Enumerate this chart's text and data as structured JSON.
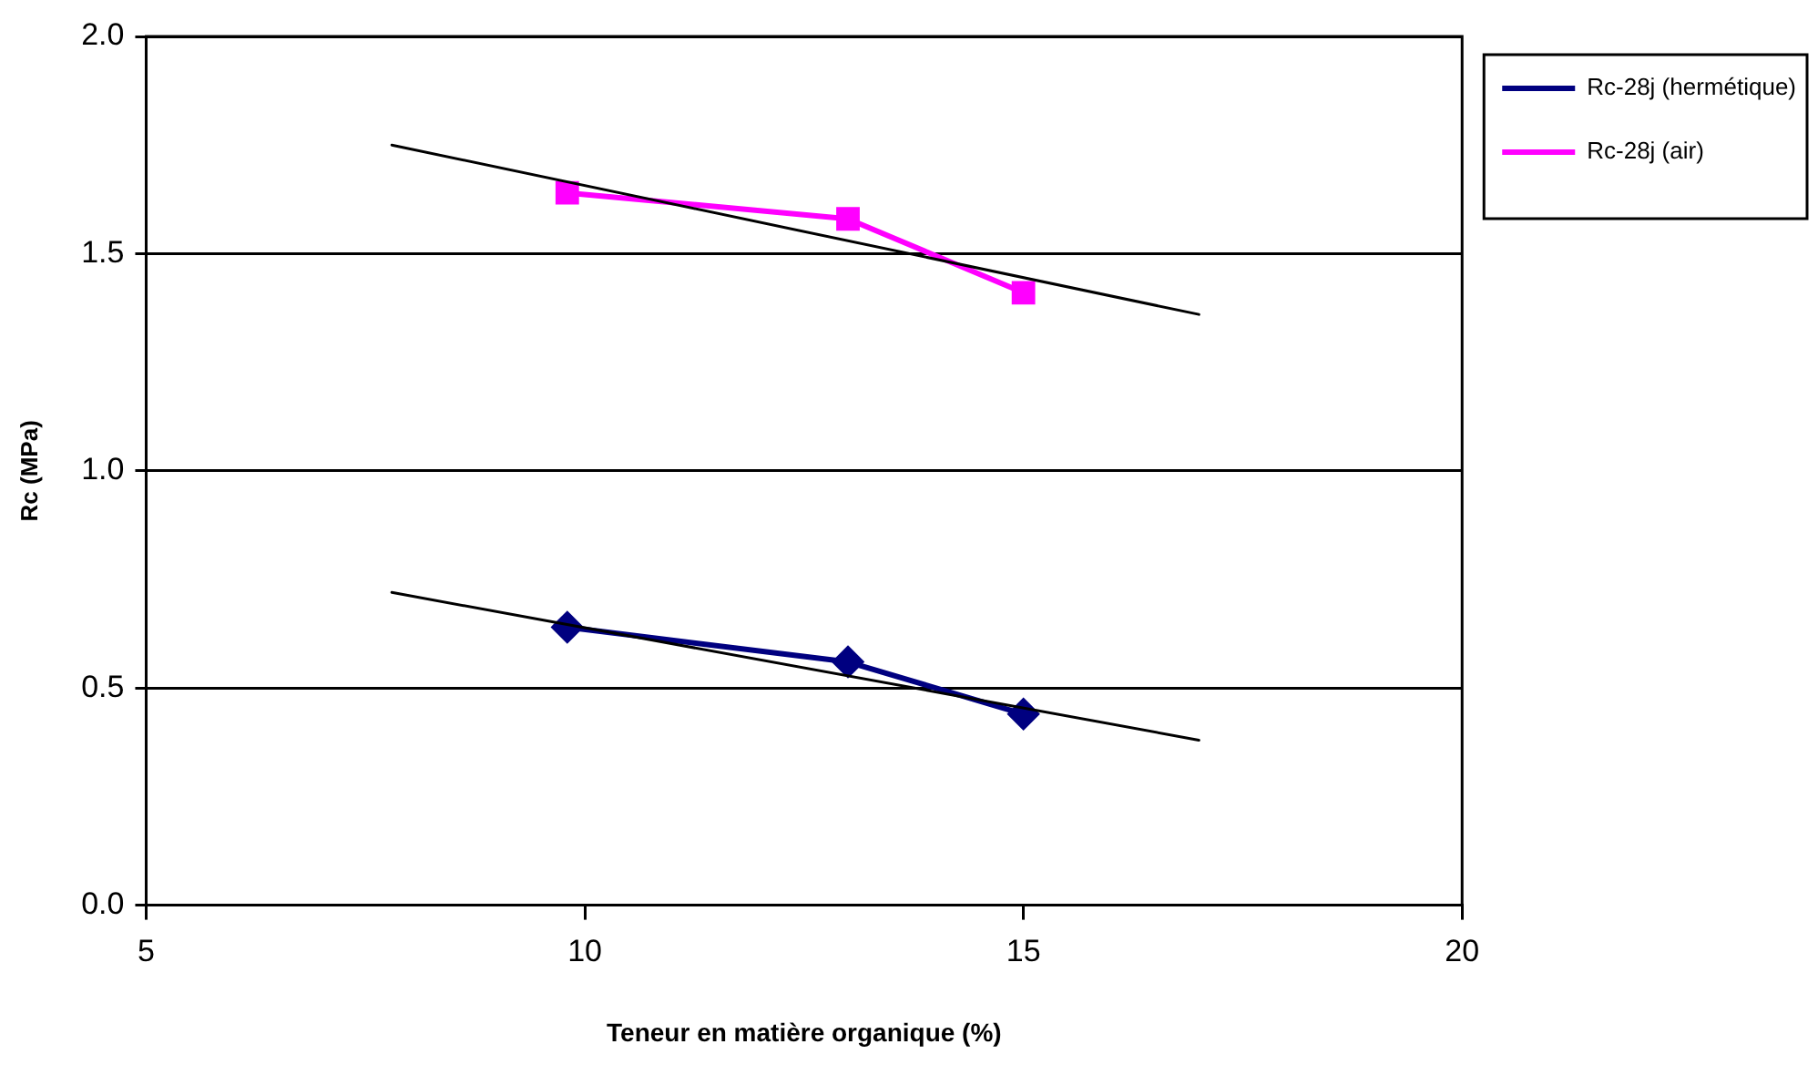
{
  "chart_data": {
    "type": "line",
    "xlabel": "Teneur en matière organique (%)",
    "ylabel": "Rc (MPa)",
    "xlim": [
      5,
      20
    ],
    "xticks": [
      5,
      10,
      15,
      20
    ],
    "ylim": [
      0,
      2
    ],
    "yticks": [
      {
        "value": 0,
        "label": "0.0"
      },
      {
        "value": 0.5,
        "label": "0.5"
      },
      {
        "value": 1,
        "label": "1.0"
      },
      {
        "value": 1.5,
        "label": "1.5"
      },
      {
        "value": 2,
        "label": "2.0"
      }
    ],
    "grid": "y",
    "legend": "right",
    "line_style": "solid",
    "series": [
      {
        "name": "Rc-28j (hermétique)",
        "color": "#000080",
        "marker": "diamond",
        "x": [
          9.8,
          13,
          15
        ],
        "values": [
          0.64,
          0.56,
          0.44
        ]
      },
      {
        "name": "Rc-28j (air)",
        "color": "#ff00ff",
        "marker": "square",
        "x": [
          9.8,
          13,
          15
        ],
        "values": [
          1.64,
          1.58,
          1.41
        ]
      },
      {
        "color": "#000000",
        "marker": "none",
        "x": [
          7.8,
          17
        ],
        "values": [
          0.72,
          0.38
        ]
      },
      {
        "color": "#000000",
        "marker": "none",
        "x": [
          7.8,
          17
        ],
        "values": [
          1.75,
          1.36
        ]
      }
    ]
  }
}
